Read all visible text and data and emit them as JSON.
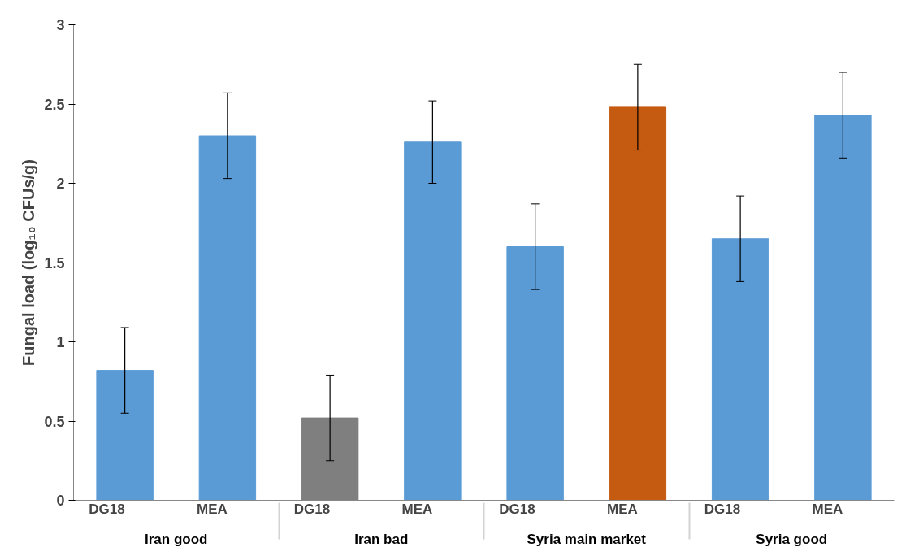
{
  "chart_data": {
    "type": "bar",
    "ylabel": "Fungal load (log₁₀ CFUs/g)",
    "categories": [
      "DG18",
      "MEA",
      "DG18",
      "MEA",
      "DG18",
      "MEA",
      "DG18",
      "MEA"
    ],
    "annotations": [
      "Iran good",
      "Iran bad",
      "Syria main market",
      "Syria good"
    ],
    "values": [
      0.82,
      2.3,
      0.52,
      2.26,
      1.6,
      2.48,
      1.65,
      2.43
    ],
    "colors": [
      "#5b9bd5",
      "#5b9bd5",
      "#7f7f7f",
      "#5b9bd5",
      "#5b9bd5",
      "#c55a11",
      "#5b9bd5",
      "#5b9bd5"
    ],
    "errors": [
      0.27,
      0.27,
      0.27,
      0.26,
      0.27,
      0.27,
      0.27,
      0.27
    ],
    "ylim": [
      0,
      3
    ],
    "yticks": [
      0,
      0.5,
      1,
      1.5,
      2,
      2.5,
      3
    ],
    "grid": false
  }
}
